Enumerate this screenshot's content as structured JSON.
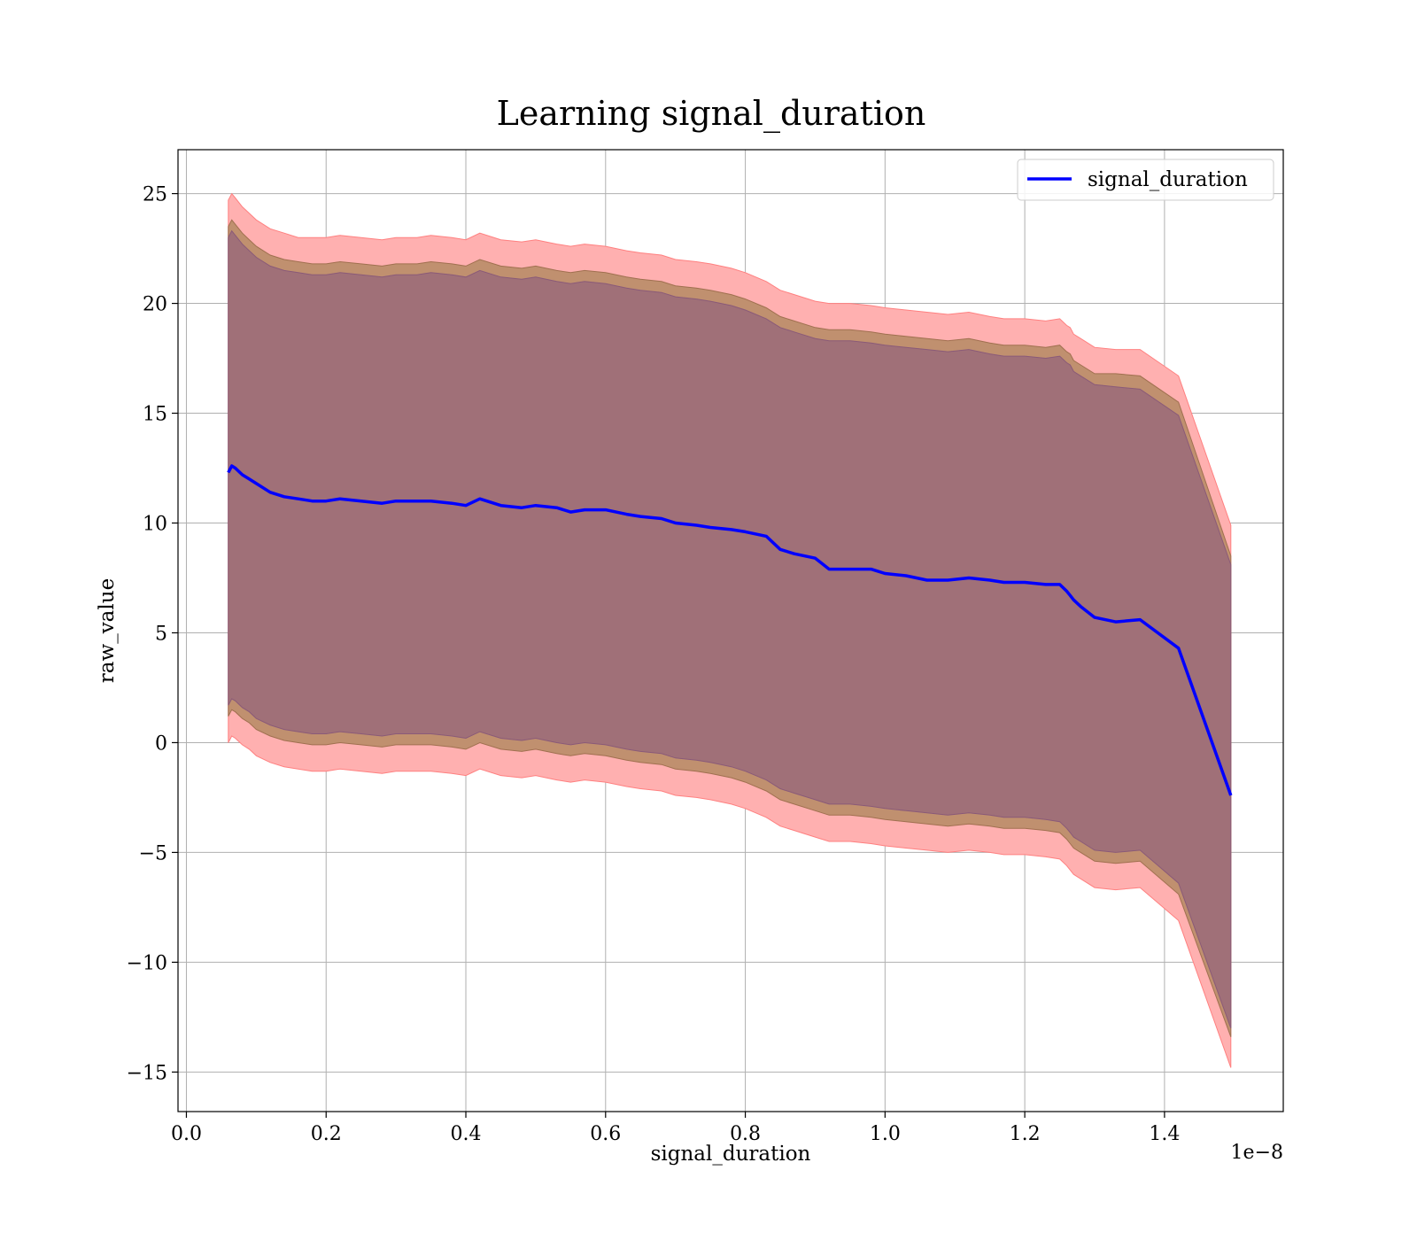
{
  "chart_data": {
    "type": "line",
    "title": "Learning signal_duration",
    "xlabel": "signal_duration",
    "ylabel": "raw_value",
    "x_offset_label": "1e−8",
    "xlim": [
      -0.012,
      1.57
    ],
    "ylim": [
      -16.8,
      27.0
    ],
    "x_ticks": [
      0.0,
      0.2,
      0.4,
      0.6,
      0.8,
      1.0,
      1.2,
      1.4
    ],
    "x_tick_labels": [
      "0.0",
      "0.2",
      "0.4",
      "0.6",
      "0.8",
      "1.0",
      "1.2",
      "1.4"
    ],
    "y_ticks": [
      -15,
      -10,
      -5,
      0,
      5,
      10,
      15,
      20,
      25
    ],
    "y_tick_labels": [
      "−15",
      "−10",
      "−5",
      "0",
      "5",
      "10",
      "15",
      "20",
      "25"
    ],
    "grid": true,
    "legend_position": "top-right",
    "colors": {
      "line": "#0000ff",
      "band_outer": "#ffb0b0",
      "band_mid": "#c0906f",
      "band_inner": "#a07078"
    },
    "series": [
      {
        "name": "signal_duration",
        "x": [
          0.06,
          0.065,
          0.07,
          0.08,
          0.09,
          0.1,
          0.12,
          0.14,
          0.16,
          0.18,
          0.2,
          0.22,
          0.25,
          0.28,
          0.3,
          0.33,
          0.35,
          0.38,
          0.4,
          0.42,
          0.45,
          0.48,
          0.5,
          0.53,
          0.55,
          0.57,
          0.6,
          0.63,
          0.65,
          0.68,
          0.7,
          0.73,
          0.75,
          0.78,
          0.8,
          0.83,
          0.85,
          0.87,
          0.9,
          0.92,
          0.95,
          0.98,
          1.0,
          1.03,
          1.06,
          1.09,
          1.12,
          1.15,
          1.17,
          1.2,
          1.23,
          1.25,
          1.26,
          1.265,
          1.27,
          1.28,
          1.3,
          1.33,
          1.365,
          1.42,
          1.495
        ],
        "y": [
          12.3,
          12.6,
          12.5,
          12.2,
          12.0,
          11.8,
          11.4,
          11.2,
          11.1,
          11.0,
          11.0,
          11.1,
          11.0,
          10.9,
          11.0,
          11.0,
          11.0,
          10.9,
          10.8,
          11.1,
          10.8,
          10.7,
          10.8,
          10.7,
          10.5,
          10.6,
          10.6,
          10.4,
          10.3,
          10.2,
          10.0,
          9.9,
          9.8,
          9.7,
          9.6,
          9.4,
          8.8,
          8.6,
          8.4,
          7.9,
          7.9,
          7.9,
          7.7,
          7.6,
          7.4,
          7.4,
          7.5,
          7.4,
          7.3,
          7.3,
          7.2,
          7.2,
          6.9,
          6.7,
          6.5,
          6.2,
          5.7,
          5.5,
          5.6,
          4.3,
          -2.4
        ]
      }
    ],
    "bands": [
      {
        "upper": [
          24.7,
          25.0,
          24.8,
          24.4,
          24.1,
          23.8,
          23.4,
          23.2,
          23.0,
          23.0,
          23.0,
          23.1,
          23.0,
          22.9,
          23.0,
          23.0,
          23.1,
          23.0,
          22.9,
          23.2,
          22.9,
          22.8,
          22.9,
          22.7,
          22.6,
          22.7,
          22.6,
          22.4,
          22.3,
          22.2,
          22.0,
          21.9,
          21.8,
          21.6,
          21.4,
          21.0,
          20.6,
          20.4,
          20.1,
          20.0,
          20.0,
          19.9,
          19.8,
          19.7,
          19.6,
          19.5,
          19.6,
          19.4,
          19.3,
          19.3,
          19.2,
          19.3,
          19.0,
          18.9,
          18.6,
          18.4,
          18.0,
          17.9,
          17.9,
          16.7,
          9.9
        ],
        "lower": [
          0.0,
          0.3,
          0.2,
          -0.1,
          -0.3,
          -0.6,
          -0.9,
          -1.1,
          -1.2,
          -1.3,
          -1.3,
          -1.2,
          -1.3,
          -1.4,
          -1.3,
          -1.3,
          -1.3,
          -1.4,
          -1.5,
          -1.2,
          -1.5,
          -1.6,
          -1.5,
          -1.7,
          -1.8,
          -1.7,
          -1.8,
          -2.0,
          -2.1,
          -2.2,
          -2.4,
          -2.5,
          -2.6,
          -2.8,
          -3.0,
          -3.4,
          -3.8,
          -4.0,
          -4.3,
          -4.5,
          -4.5,
          -4.6,
          -4.7,
          -4.8,
          -4.9,
          -5.0,
          -4.9,
          -5.0,
          -5.1,
          -5.1,
          -5.2,
          -5.3,
          -5.6,
          -5.8,
          -6.0,
          -6.2,
          -6.6,
          -6.7,
          -6.6,
          -8.1,
          -14.8
        ]
      },
      {
        "upper": [
          23.5,
          23.8,
          23.6,
          23.2,
          22.9,
          22.6,
          22.2,
          22.0,
          21.9,
          21.8,
          21.8,
          21.9,
          21.8,
          21.7,
          21.8,
          21.8,
          21.9,
          21.8,
          21.7,
          22.0,
          21.7,
          21.6,
          21.7,
          21.5,
          21.4,
          21.5,
          21.4,
          21.2,
          21.1,
          21.0,
          20.8,
          20.7,
          20.6,
          20.4,
          20.2,
          19.8,
          19.4,
          19.2,
          18.9,
          18.8,
          18.8,
          18.7,
          18.6,
          18.5,
          18.4,
          18.3,
          18.4,
          18.2,
          18.1,
          18.1,
          18.0,
          18.1,
          17.8,
          17.7,
          17.4,
          17.2,
          16.8,
          16.8,
          16.7,
          15.5,
          8.5
        ],
        "lower": [
          1.2,
          1.5,
          1.4,
          1.1,
          0.9,
          0.6,
          0.3,
          0.1,
          0.0,
          -0.1,
          -0.1,
          0.0,
          -0.1,
          -0.2,
          -0.1,
          -0.1,
          -0.1,
          -0.2,
          -0.3,
          0.0,
          -0.3,
          -0.4,
          -0.3,
          -0.5,
          -0.6,
          -0.5,
          -0.6,
          -0.8,
          -0.9,
          -1.0,
          -1.2,
          -1.3,
          -1.4,
          -1.6,
          -1.8,
          -2.2,
          -2.6,
          -2.8,
          -3.1,
          -3.3,
          -3.3,
          -3.4,
          -3.5,
          -3.6,
          -3.7,
          -3.8,
          -3.7,
          -3.8,
          -3.9,
          -3.9,
          -4.0,
          -4.1,
          -4.4,
          -4.6,
          -4.8,
          -5.0,
          -5.4,
          -5.5,
          -5.4,
          -6.9,
          -13.4
        ]
      },
      {
        "upper": [
          23.0,
          23.3,
          23.1,
          22.7,
          22.4,
          22.1,
          21.7,
          21.5,
          21.4,
          21.3,
          21.3,
          21.4,
          21.3,
          21.2,
          21.3,
          21.3,
          21.4,
          21.3,
          21.2,
          21.5,
          21.2,
          21.1,
          21.2,
          21.0,
          20.9,
          21.0,
          20.9,
          20.7,
          20.6,
          20.5,
          20.3,
          20.2,
          20.1,
          19.9,
          19.7,
          19.3,
          18.9,
          18.7,
          18.4,
          18.3,
          18.3,
          18.2,
          18.1,
          18.0,
          17.9,
          17.8,
          17.9,
          17.7,
          17.6,
          17.6,
          17.5,
          17.6,
          17.3,
          17.2,
          16.9,
          16.7,
          16.3,
          16.2,
          16.1,
          14.9,
          8.1
        ],
        "lower": [
          1.7,
          2.0,
          1.9,
          1.6,
          1.4,
          1.1,
          0.8,
          0.6,
          0.5,
          0.4,
          0.4,
          0.5,
          0.4,
          0.3,
          0.4,
          0.4,
          0.4,
          0.3,
          0.2,
          0.5,
          0.2,
          0.1,
          0.2,
          0.0,
          -0.1,
          0.0,
          -0.1,
          -0.3,
          -0.4,
          -0.5,
          -0.7,
          -0.8,
          -0.9,
          -1.1,
          -1.3,
          -1.7,
          -2.1,
          -2.3,
          -2.6,
          -2.8,
          -2.8,
          -2.9,
          -3.0,
          -3.1,
          -3.2,
          -3.3,
          -3.2,
          -3.3,
          -3.4,
          -3.4,
          -3.5,
          -3.6,
          -3.9,
          -4.1,
          -4.3,
          -4.5,
          -4.9,
          -5.0,
          -4.9,
          -6.4,
          -13.0
        ]
      }
    ]
  }
}
